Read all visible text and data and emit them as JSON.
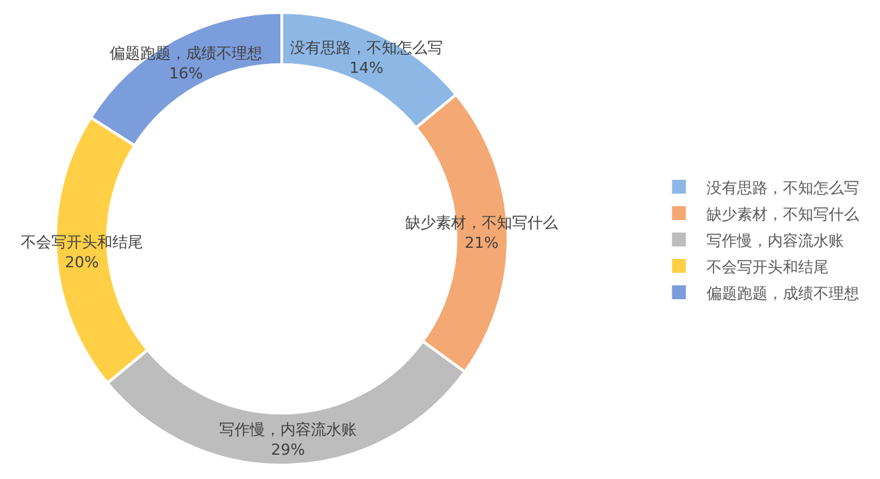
{
  "chart_data": {
    "type": "donut",
    "categories": [
      "没有思路，不知怎么写",
      "缺少素材，不知写什么",
      "写作慢，内容流水账",
      "不会写开头和结尾",
      "偏题跑题，成绩不理想"
    ],
    "values": [
      14,
      21,
      29,
      20,
      16
    ],
    "value_labels": [
      "14%",
      "21%",
      "29%",
      "20%",
      "16%"
    ],
    "colors": [
      "#8db8e6",
      "#f4a873",
      "#bdbdbd",
      "#ffd045",
      "#7c9ddb"
    ],
    "legend": "right"
  }
}
